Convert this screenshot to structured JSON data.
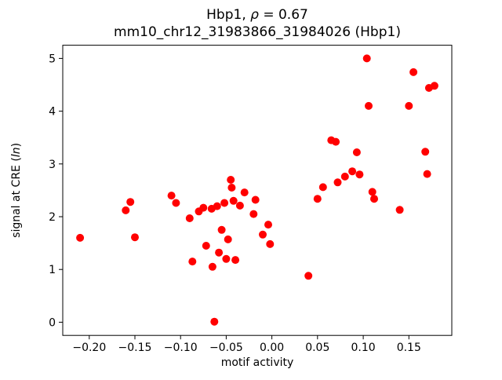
{
  "chart_data": {
    "type": "scatter",
    "title": "Hbp1, ρ = 0.67\nmm10_chr12_31983866_31984026 (Hbp1)",
    "title_line1_parts": {
      "prefix": "Hbp1, ",
      "rho": "ρ",
      "suffix": " = 0.67"
    },
    "title_line2": "mm10_chr12_31983866_31984026 (Hbp1)",
    "xlabel": "motif activity",
    "ylabel": "signal at CRE (ln)",
    "ylabel_parts": {
      "prefix": "signal at CRE (",
      "italic": "ln",
      "suffix": ")"
    },
    "xlim": [
      -0.229,
      0.197
    ],
    "ylim": [
      -0.25,
      5.25
    ],
    "xticks": [
      {
        "v": -0.2,
        "label": "−0.20"
      },
      {
        "v": -0.15,
        "label": "−0.15"
      },
      {
        "v": -0.1,
        "label": "−0.10"
      },
      {
        "v": -0.05,
        "label": "−0.05"
      },
      {
        "v": 0.0,
        "label": "0.00"
      },
      {
        "v": 0.05,
        "label": "0.05"
      },
      {
        "v": 0.1,
        "label": "0.10"
      },
      {
        "v": 0.15,
        "label": "0.15"
      }
    ],
    "yticks": [
      {
        "v": 0,
        "label": "0"
      },
      {
        "v": 1,
        "label": "1"
      },
      {
        "v": 2,
        "label": "2"
      },
      {
        "v": 3,
        "label": "3"
      },
      {
        "v": 4,
        "label": "4"
      },
      {
        "v": 5,
        "label": "5"
      }
    ],
    "grid": false,
    "legend": "none",
    "marker_color": "#ff0000",
    "marker_radius": 5,
    "points": [
      [
        -0.21,
        1.6
      ],
      [
        -0.16,
        2.12
      ],
      [
        -0.155,
        2.28
      ],
      [
        -0.15,
        1.61
      ],
      [
        -0.11,
        2.4
      ],
      [
        -0.105,
        2.26
      ],
      [
        -0.09,
        1.97
      ],
      [
        -0.087,
        1.15
      ],
      [
        -0.08,
        2.1
      ],
      [
        -0.075,
        2.17
      ],
      [
        -0.072,
        1.45
      ],
      [
        -0.066,
        2.15
      ],
      [
        -0.065,
        1.05
      ],
      [
        -0.063,
        0.01
      ],
      [
        -0.06,
        2.2
      ],
      [
        -0.058,
        1.32
      ],
      [
        -0.055,
        1.75
      ],
      [
        -0.052,
        2.26
      ],
      [
        -0.05,
        1.2
      ],
      [
        -0.048,
        1.57
      ],
      [
        -0.045,
        2.7
      ],
      [
        -0.044,
        2.55
      ],
      [
        -0.042,
        2.3
      ],
      [
        -0.04,
        1.18
      ],
      [
        -0.035,
        2.21
      ],
      [
        -0.03,
        2.46
      ],
      [
        -0.02,
        2.05
      ],
      [
        -0.018,
        2.32
      ],
      [
        -0.01,
        1.66
      ],
      [
        -0.004,
        1.85
      ],
      [
        -0.002,
        1.48
      ],
      [
        0.04,
        0.88
      ],
      [
        0.05,
        2.34
      ],
      [
        0.056,
        2.56
      ],
      [
        0.065,
        3.45
      ],
      [
        0.07,
        3.42
      ],
      [
        0.072,
        2.65
      ],
      [
        0.08,
        2.76
      ],
      [
        0.088,
        2.86
      ],
      [
        0.093,
        3.22
      ],
      [
        0.096,
        2.8
      ],
      [
        0.104,
        5.0
      ],
      [
        0.106,
        4.1
      ],
      [
        0.11,
        2.47
      ],
      [
        0.112,
        2.34
      ],
      [
        0.14,
        2.13
      ],
      [
        0.15,
        4.1
      ],
      [
        0.155,
        4.74
      ],
      [
        0.168,
        3.23
      ],
      [
        0.17,
        2.81
      ],
      [
        0.172,
        4.44
      ],
      [
        0.178,
        4.48
      ]
    ]
  }
}
